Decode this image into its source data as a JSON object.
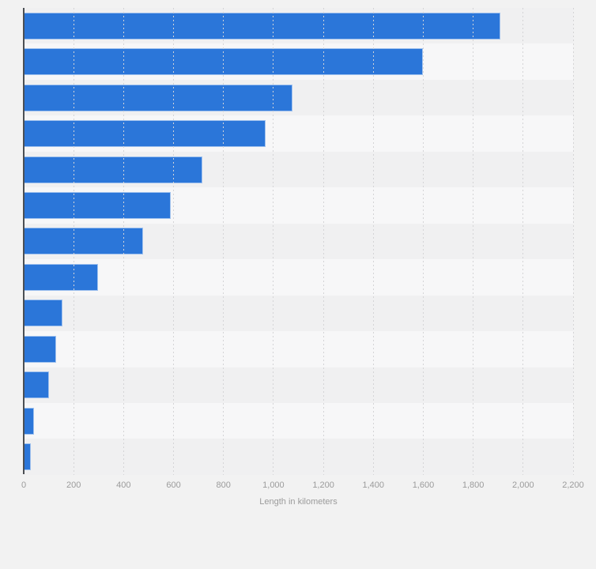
{
  "chart_data": {
    "type": "bar",
    "orientation": "horizontal",
    "title": "",
    "xlabel": "Length in kilometers",
    "ylabel": "",
    "xlim": [
      0,
      2200
    ],
    "xticks": [
      0,
      200,
      400,
      600,
      800,
      1000,
      1200,
      1400,
      1600,
      1800,
      2000,
      2200
    ],
    "xtick_labels": [
      "0",
      "200",
      "400",
      "600",
      "800",
      "1,000",
      "1,200",
      "1,400",
      "1,600",
      "1,800",
      "2,000",
      "2,200"
    ],
    "categories": [
      "",
      "",
      "",
      "",
      "",
      "",
      "",
      "",
      "",
      "",
      "",
      "",
      ""
    ],
    "values": [
      1910,
      1600,
      1075,
      970,
      715,
      590,
      478,
      298,
      155,
      131,
      102,
      40,
      27
    ],
    "grid": "vertical dashed gridlines",
    "legend": "none",
    "colors": {
      "bar": "#2b76d9",
      "bar_border": "#cddcf4",
      "background": "#f2f2f2",
      "stripe_odd": "#f0f0f1",
      "stripe_even": "#f7f7f8",
      "grid_line": "#d4d4d6",
      "axis_line": "#4b4f54",
      "tick_text": "#9b9b9b"
    }
  }
}
